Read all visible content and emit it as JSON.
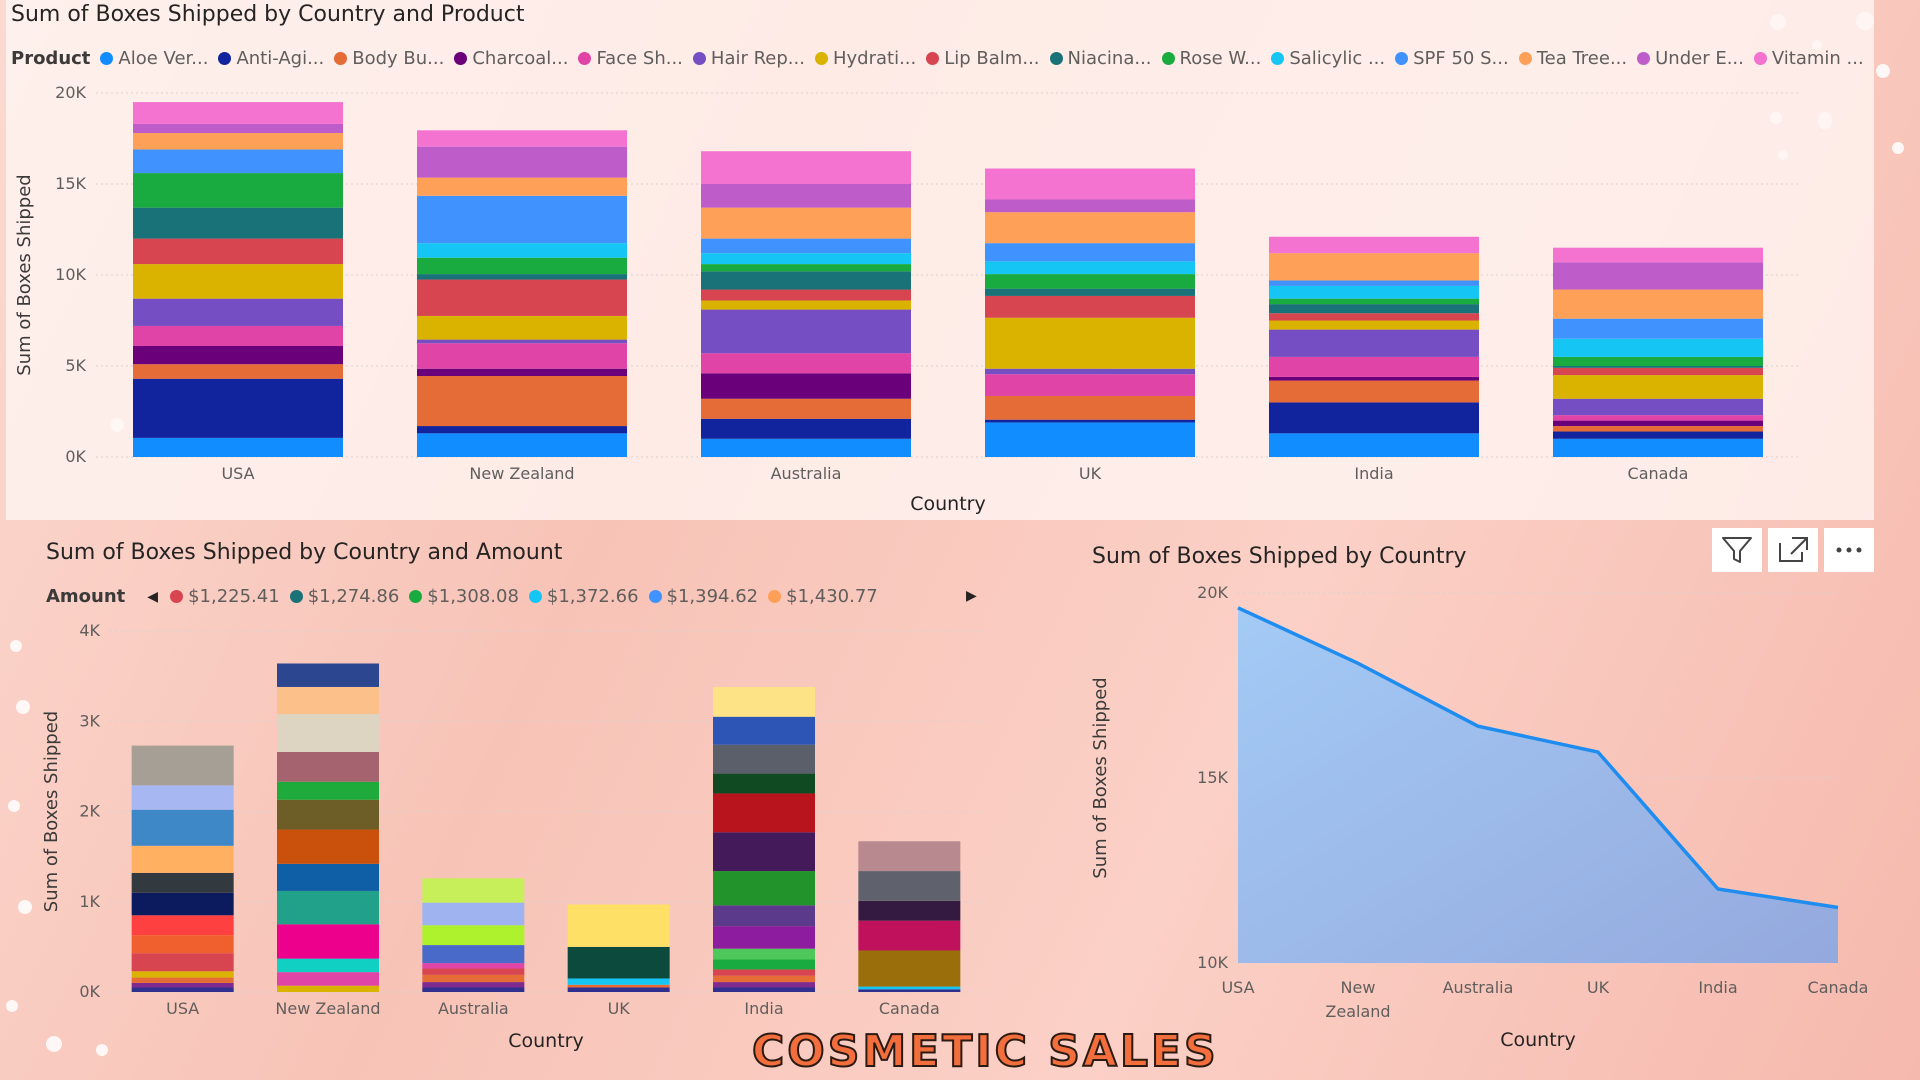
{
  "dashboard_title": "COSMETIC SALES",
  "colors": {
    "accent": "#1f8cf0",
    "gridline": "#d9d2cf",
    "axis_text": "#605e5c"
  },
  "toolbar": {
    "icons": [
      "filter-icon",
      "focus-mode-icon",
      "more-options-icon"
    ]
  },
  "chart_data": [
    {
      "id": "product",
      "type": "bar",
      "stacked": true,
      "title": "Sum of Boxes Shipped by Country and Product",
      "xlabel": "Country",
      "ylabel": "Sum of Boxes Shipped",
      "ylim": [
        0,
        20000
      ],
      "yticks": [
        "0K",
        "5K",
        "10K",
        "15K",
        "20K"
      ],
      "legend_title": "Product",
      "legend_position": "top-left",
      "categories": [
        "USA",
        "New Zealand",
        "Australia",
        "UK",
        "India",
        "Canada"
      ],
      "series": [
        {
          "name": "Aloe Ver...",
          "color": "#118dff",
          "values": [
            1050,
            1300,
            1000,
            1900,
            1300,
            1000
          ]
        },
        {
          "name": "Anti-Agi...",
          "color": "#12239e",
          "values": [
            3250,
            400,
            1100,
            150,
            1700,
            400
          ]
        },
        {
          "name": "Body Bu...",
          "color": "#e66c37",
          "values": [
            800,
            2750,
            1100,
            1300,
            1200,
            300
          ]
        },
        {
          "name": "Charcoal...",
          "color": "#6b007b",
          "values": [
            1000,
            400,
            1400,
            0,
            200,
            300
          ]
        },
        {
          "name": "Face Sh...",
          "color": "#e044a7",
          "values": [
            1100,
            1400,
            1100,
            1200,
            1100,
            300
          ]
        },
        {
          "name": "Hair Rep...",
          "color": "#744ec2",
          "values": [
            1500,
            200,
            2400,
            300,
            1500,
            900
          ]
        },
        {
          "name": "Hydrati...",
          "color": "#d9b300",
          "values": [
            1900,
            1300,
            500,
            2800,
            500,
            1300
          ]
        },
        {
          "name": "Lip Balm...",
          "color": "#d64550",
          "values": [
            1400,
            2000,
            600,
            1200,
            400,
            400
          ]
        },
        {
          "name": "Niacina...",
          "color": "#197278",
          "values": [
            1700,
            300,
            1000,
            400,
            500,
            100
          ]
        },
        {
          "name": "Rose W...",
          "color": "#1aab40",
          "values": [
            1900,
            900,
            400,
            800,
            300,
            500
          ]
        },
        {
          "name": "Salicylic ...",
          "color": "#15c6f4",
          "values": [
            0,
            800,
            600,
            700,
            700,
            1000
          ]
        },
        {
          "name": "SPF 50 S...",
          "color": "#4092ff",
          "values": [
            1300,
            2600,
            800,
            1000,
            300,
            1100
          ]
        },
        {
          "name": "Tea Tree...",
          "color": "#ffa058",
          "values": [
            900,
            1000,
            1700,
            1700,
            1500,
            1600
          ]
        },
        {
          "name": "Under E...",
          "color": "#be5dc9",
          "values": [
            500,
            1700,
            1300,
            700,
            0,
            1500
          ]
        },
        {
          "name": "Vitamin ...",
          "color": "#f472d0",
          "values": [
            1200,
            900,
            1800,
            1700,
            900,
            800
          ]
        }
      ]
    },
    {
      "id": "amount",
      "type": "bar",
      "stacked": true,
      "title": "Sum of Boxes Shipped by Country and Amount",
      "xlabel": "Country",
      "ylabel": "Sum of Boxes Shipped",
      "ylim": [
        0,
        4000
      ],
      "yticks": [
        "0K",
        "1K",
        "2K",
        "3K",
        "4K"
      ],
      "legend_title": "Amount",
      "legend_position": "top-left",
      "legend_entries": [
        {
          "name": "$1,225.41",
          "color": "#d64550"
        },
        {
          "name": "$1,274.86",
          "color": "#197278"
        },
        {
          "name": "$1,308.08",
          "color": "#1aab40"
        },
        {
          "name": "$1,372.66",
          "color": "#15c6f4"
        },
        {
          "name": "$1,394.62",
          "color": "#4092ff"
        },
        {
          "name": "$1,430.77",
          "color": "#ffa058"
        }
      ],
      "categories": [
        "USA",
        "New Zealand",
        "Australia",
        "UK",
        "India",
        "Canada"
      ],
      "stacks": [
        {
          "color": "#2f2f8f",
          "values": [
            50,
            0,
            50,
            50,
            50,
            30
          ]
        },
        {
          "color": "#7f2a8f",
          "values": [
            50,
            0,
            60,
            0,
            60,
            0
          ]
        },
        {
          "color": "#e66c37",
          "values": [
            60,
            0,
            80,
            30,
            70,
            0
          ]
        },
        {
          "color": "#15c6f4",
          "values": [
            0,
            0,
            0,
            70,
            0,
            30
          ]
        },
        {
          "color": "#d9b300",
          "values": [
            70,
            70,
            0,
            0,
            0,
            0
          ]
        },
        {
          "color": "#d64550",
          "values": [
            200,
            0,
            70,
            0,
            70,
            0
          ]
        },
        {
          "color": "#1aab40",
          "values": [
            0,
            0,
            0,
            0,
            110,
            0
          ]
        },
        {
          "color": "#e044a7",
          "values": [
            0,
            150,
            60,
            0,
            0,
            0
          ]
        },
        {
          "color": "#10d0c4",
          "values": [
            0,
            150,
            0,
            0,
            0,
            0
          ]
        },
        {
          "color": "#ffa058",
          "values": [
            0,
            0,
            0,
            0,
            0,
            0
          ]
        },
        {
          "color": "#ec008c",
          "values": [
            0,
            380,
            0,
            0,
            0,
            0
          ]
        },
        {
          "color": "#f0602f",
          "values": [
            200,
            0,
            0,
            0,
            0,
            0
          ]
        },
        {
          "color": "#ff4040",
          "values": [
            220,
            0,
            0,
            0,
            0,
            0
          ]
        },
        {
          "color": "#0c1a5e",
          "values": [
            250,
            0,
            0,
            0,
            0,
            0
          ]
        },
        {
          "color": "#333a3f",
          "values": [
            220,
            0,
            0,
            0,
            0,
            0
          ]
        },
        {
          "color": "#ffb061",
          "values": [
            300,
            0,
            0,
            0,
            0,
            0
          ]
        },
        {
          "color": "#3e88c8",
          "values": [
            400,
            0,
            0,
            0,
            0,
            0
          ]
        },
        {
          "color": "#a7b7f2",
          "values": [
            270,
            0,
            0,
            0,
            0,
            0
          ]
        },
        {
          "color": "#a59f96",
          "values": [
            440,
            0,
            0,
            0,
            0,
            0
          ]
        },
        {
          "color": "#21a08a",
          "values": [
            0,
            370,
            0,
            0,
            0,
            0
          ]
        },
        {
          "color": "#0f5fa6",
          "values": [
            0,
            300,
            0,
            0,
            0,
            0
          ]
        },
        {
          "color": "#c9510c",
          "values": [
            0,
            380,
            0,
            0,
            0,
            0
          ]
        },
        {
          "color": "#6d5d27",
          "values": [
            0,
            330,
            0,
            0,
            0,
            0
          ]
        },
        {
          "color": "#1fab3c",
          "values": [
            0,
            200,
            0,
            0,
            0,
            0
          ]
        },
        {
          "color": "#a4636f",
          "values": [
            0,
            330,
            0,
            0,
            0,
            0
          ]
        },
        {
          "color": "#ded4c2",
          "values": [
            0,
            420,
            0,
            0,
            0,
            0
          ]
        },
        {
          "color": "#fcc08a",
          "values": [
            0,
            300,
            0,
            0,
            0,
            0
          ]
        },
        {
          "color": "#2c4690",
          "values": [
            0,
            260,
            0,
            0,
            0,
            0
          ]
        },
        {
          "color": "#4a6ac9",
          "values": [
            0,
            0,
            200,
            0,
            0,
            0
          ]
        },
        {
          "color": "#aef22d",
          "values": [
            0,
            0,
            220,
            0,
            0,
            0
          ]
        },
        {
          "color": "#9eb3f0",
          "values": [
            0,
            0,
            250,
            0,
            0,
            0
          ]
        },
        {
          "color": "#c6ef5a",
          "values": [
            0,
            0,
            270,
            0,
            0,
            0
          ]
        },
        {
          "color": "#0c4a3e",
          "values": [
            0,
            0,
            0,
            350,
            0,
            0
          ]
        },
        {
          "color": "#fee066",
          "values": [
            0,
            0,
            0,
            470,
            0,
            0
          ]
        },
        {
          "color": "#e0a2c5",
          "values": [
            0,
            0,
            0,
            0,
            0,
            0
          ]
        },
        {
          "color": "#4ec85a",
          "values": [
            0,
            0,
            0,
            0,
            120,
            0
          ]
        },
        {
          "color": "#8e1c9e",
          "values": [
            0,
            0,
            0,
            0,
            250,
            0
          ]
        },
        {
          "color": "#5b3a8c",
          "values": [
            0,
            0,
            0,
            0,
            230,
            0
          ]
        },
        {
          "color": "#22922a",
          "values": [
            0,
            0,
            0,
            0,
            380,
            0
          ]
        },
        {
          "color": "#441a5a",
          "values": [
            0,
            0,
            0,
            0,
            430,
            0
          ]
        },
        {
          "color": "#b8141e",
          "values": [
            0,
            0,
            0,
            0,
            430,
            0
          ]
        },
        {
          "color": "#0f4a22",
          "values": [
            0,
            0,
            0,
            0,
            220,
            0
          ]
        },
        {
          "color": "#5a5f69",
          "values": [
            0,
            0,
            0,
            0,
            320,
            0
          ]
        },
        {
          "color": "#2d55b5",
          "values": [
            0,
            0,
            0,
            0,
            310,
            0
          ]
        },
        {
          "color": "#fde286",
          "values": [
            0,
            0,
            0,
            0,
            330,
            0
          ]
        },
        {
          "color": "#9b6e0c",
          "values": [
            0,
            0,
            0,
            0,
            0,
            400
          ]
        },
        {
          "color": "#c0115c",
          "values": [
            0,
            0,
            0,
            0,
            0,
            330
          ]
        },
        {
          "color": "#341941",
          "values": [
            0,
            0,
            0,
            0,
            0,
            220
          ]
        },
        {
          "color": "#5f626d",
          "values": [
            0,
            0,
            0,
            0,
            0,
            330
          ]
        },
        {
          "color": "#b8898e",
          "values": [
            0,
            0,
            0,
            0,
            0,
            330
          ]
        }
      ]
    },
    {
      "id": "country",
      "type": "area",
      "title": "Sum of Boxes Shipped by Country",
      "xlabel": "Country",
      "ylabel": "Sum of Boxes Shipped",
      "ylim": [
        10000,
        20000
      ],
      "yticks": [
        "10K",
        "15K",
        "20K"
      ],
      "categories": [
        "USA",
        "New Zealand",
        "Australia",
        "UK",
        "India",
        "Canada"
      ],
      "values": [
        19600,
        18100,
        16400,
        15700,
        12000,
        11500
      ],
      "color": "#1f8cf0"
    }
  ]
}
